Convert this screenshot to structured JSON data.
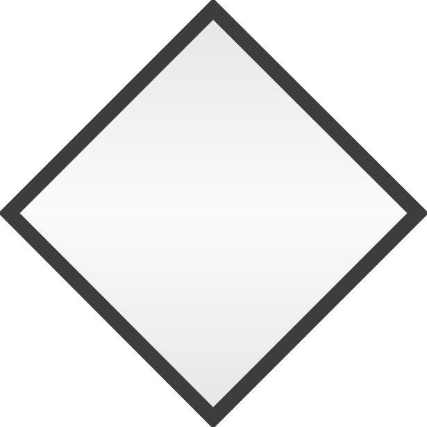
{
  "graphic": {
    "shape_icon": "diamond-icon",
    "colors": {
      "background": "#ffffff",
      "border": "#3d3d3d",
      "fill_top": "#e6e6e6",
      "fill_middle": "#fbfbfb",
      "fill_bottom": "#e6e6e6"
    }
  }
}
